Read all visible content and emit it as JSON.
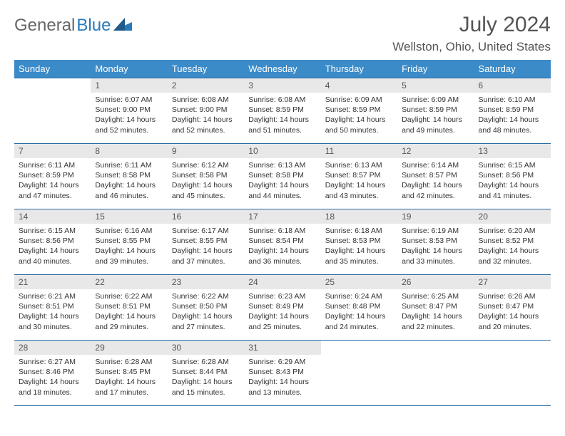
{
  "logo": {
    "part1": "General",
    "part2": "Blue"
  },
  "title": "July 2024",
  "location": "Wellston, Ohio, United States",
  "colors": {
    "header_bg": "#3b8bc9",
    "header_text": "#ffffff",
    "rule": "#2a6aa0",
    "daynum_bg": "#e8e8e8",
    "text": "#333333",
    "title_text": "#555555",
    "logo_blue": "#2a7ab8"
  },
  "day_headers": [
    "Sunday",
    "Monday",
    "Tuesday",
    "Wednesday",
    "Thursday",
    "Friday",
    "Saturday"
  ],
  "weeks": [
    [
      {
        "n": "",
        "sr": "",
        "ss": "",
        "dl": ""
      },
      {
        "n": "1",
        "sr": "6:07 AM",
        "ss": "9:00 PM",
        "dl": "14 hours and 52 minutes."
      },
      {
        "n": "2",
        "sr": "6:08 AM",
        "ss": "9:00 PM",
        "dl": "14 hours and 52 minutes."
      },
      {
        "n": "3",
        "sr": "6:08 AM",
        "ss": "8:59 PM",
        "dl": "14 hours and 51 minutes."
      },
      {
        "n": "4",
        "sr": "6:09 AM",
        "ss": "8:59 PM",
        "dl": "14 hours and 50 minutes."
      },
      {
        "n": "5",
        "sr": "6:09 AM",
        "ss": "8:59 PM",
        "dl": "14 hours and 49 minutes."
      },
      {
        "n": "6",
        "sr": "6:10 AM",
        "ss": "8:59 PM",
        "dl": "14 hours and 48 minutes."
      }
    ],
    [
      {
        "n": "7",
        "sr": "6:11 AM",
        "ss": "8:59 PM",
        "dl": "14 hours and 47 minutes."
      },
      {
        "n": "8",
        "sr": "6:11 AM",
        "ss": "8:58 PM",
        "dl": "14 hours and 46 minutes."
      },
      {
        "n": "9",
        "sr": "6:12 AM",
        "ss": "8:58 PM",
        "dl": "14 hours and 45 minutes."
      },
      {
        "n": "10",
        "sr": "6:13 AM",
        "ss": "8:58 PM",
        "dl": "14 hours and 44 minutes."
      },
      {
        "n": "11",
        "sr": "6:13 AM",
        "ss": "8:57 PM",
        "dl": "14 hours and 43 minutes."
      },
      {
        "n": "12",
        "sr": "6:14 AM",
        "ss": "8:57 PM",
        "dl": "14 hours and 42 minutes."
      },
      {
        "n": "13",
        "sr": "6:15 AM",
        "ss": "8:56 PM",
        "dl": "14 hours and 41 minutes."
      }
    ],
    [
      {
        "n": "14",
        "sr": "6:15 AM",
        "ss": "8:56 PM",
        "dl": "14 hours and 40 minutes."
      },
      {
        "n": "15",
        "sr": "6:16 AM",
        "ss": "8:55 PM",
        "dl": "14 hours and 39 minutes."
      },
      {
        "n": "16",
        "sr": "6:17 AM",
        "ss": "8:55 PM",
        "dl": "14 hours and 37 minutes."
      },
      {
        "n": "17",
        "sr": "6:18 AM",
        "ss": "8:54 PM",
        "dl": "14 hours and 36 minutes."
      },
      {
        "n": "18",
        "sr": "6:18 AM",
        "ss": "8:53 PM",
        "dl": "14 hours and 35 minutes."
      },
      {
        "n": "19",
        "sr": "6:19 AM",
        "ss": "8:53 PM",
        "dl": "14 hours and 33 minutes."
      },
      {
        "n": "20",
        "sr": "6:20 AM",
        "ss": "8:52 PM",
        "dl": "14 hours and 32 minutes."
      }
    ],
    [
      {
        "n": "21",
        "sr": "6:21 AM",
        "ss": "8:51 PM",
        "dl": "14 hours and 30 minutes."
      },
      {
        "n": "22",
        "sr": "6:22 AM",
        "ss": "8:51 PM",
        "dl": "14 hours and 29 minutes."
      },
      {
        "n": "23",
        "sr": "6:22 AM",
        "ss": "8:50 PM",
        "dl": "14 hours and 27 minutes."
      },
      {
        "n": "24",
        "sr": "6:23 AM",
        "ss": "8:49 PM",
        "dl": "14 hours and 25 minutes."
      },
      {
        "n": "25",
        "sr": "6:24 AM",
        "ss": "8:48 PM",
        "dl": "14 hours and 24 minutes."
      },
      {
        "n": "26",
        "sr": "6:25 AM",
        "ss": "8:47 PM",
        "dl": "14 hours and 22 minutes."
      },
      {
        "n": "27",
        "sr": "6:26 AM",
        "ss": "8:47 PM",
        "dl": "14 hours and 20 minutes."
      }
    ],
    [
      {
        "n": "28",
        "sr": "6:27 AM",
        "ss": "8:46 PM",
        "dl": "14 hours and 18 minutes."
      },
      {
        "n": "29",
        "sr": "6:28 AM",
        "ss": "8:45 PM",
        "dl": "14 hours and 17 minutes."
      },
      {
        "n": "30",
        "sr": "6:28 AM",
        "ss": "8:44 PM",
        "dl": "14 hours and 15 minutes."
      },
      {
        "n": "31",
        "sr": "6:29 AM",
        "ss": "8:43 PM",
        "dl": "14 hours and 13 minutes."
      },
      {
        "n": "",
        "sr": "",
        "ss": "",
        "dl": ""
      },
      {
        "n": "",
        "sr": "",
        "ss": "",
        "dl": ""
      },
      {
        "n": "",
        "sr": "",
        "ss": "",
        "dl": ""
      }
    ]
  ],
  "labels": {
    "sunrise": "Sunrise:",
    "sunset": "Sunset:",
    "daylight": "Daylight:"
  }
}
